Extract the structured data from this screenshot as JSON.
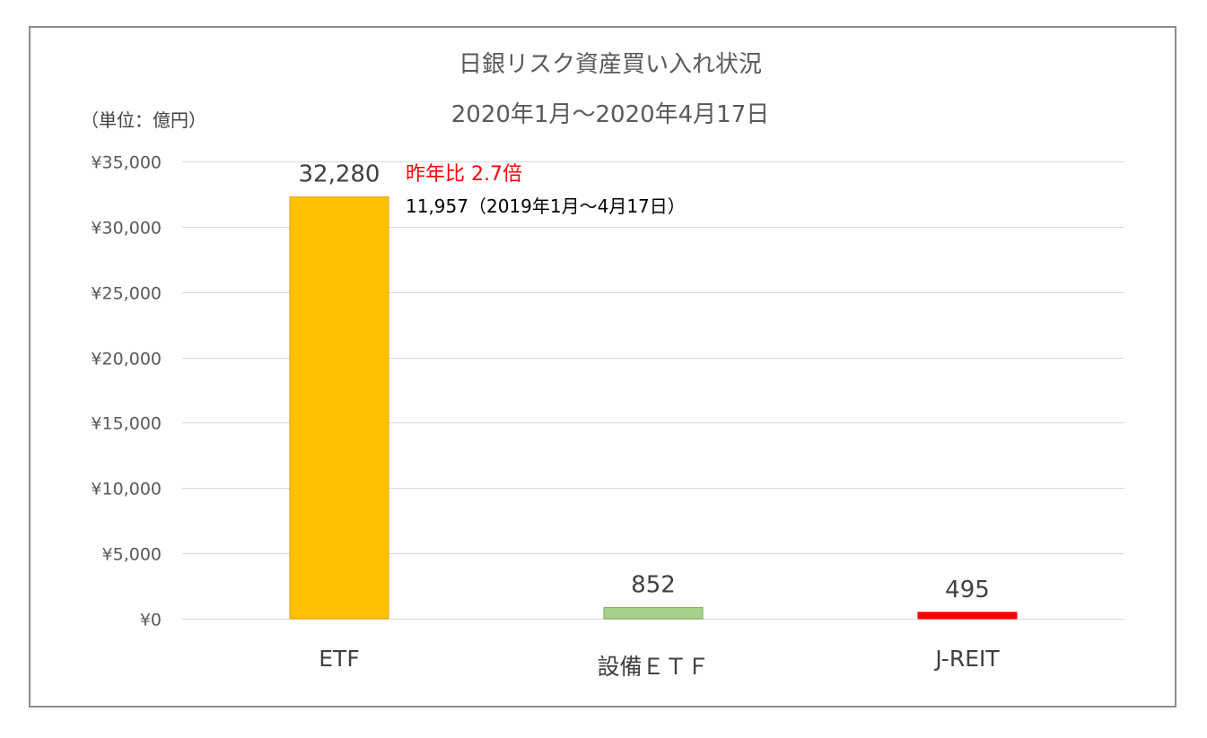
{
  "chart_data": {
    "type": "bar",
    "title": "日銀リスク資産買い入れ状況",
    "subtitle": "2020年1月～2020年4月17日",
    "unit_label": "（単位：億円）",
    "categories": [
      "ETF",
      "設備ＥＴＦ",
      "J-REIT"
    ],
    "values": [
      32280,
      852,
      495
    ],
    "value_labels": [
      "32,280",
      "852",
      "495"
    ],
    "bar_colors": [
      "#ffc000",
      "#a9d18e",
      "#ff0000"
    ],
    "bar_border_colors": [
      "#e0a000",
      "#70ad47",
      "#ff0000"
    ],
    "ylim": [
      0,
      35000
    ],
    "y_ticks": [
      0,
      5000,
      10000,
      15000,
      20000,
      25000,
      30000,
      35000
    ],
    "y_tick_labels": [
      "¥0",
      "¥5,000",
      "¥10,000",
      "¥15,000",
      "¥20,000",
      "¥25,000",
      "¥30,000",
      "¥35,000"
    ],
    "grid": true,
    "xlabel": "",
    "ylabel": "",
    "annotations": {
      "yoy_text": "昨年比  2.7倍",
      "prior_period_text": "11,957（2019年1月～4月17日）"
    }
  }
}
